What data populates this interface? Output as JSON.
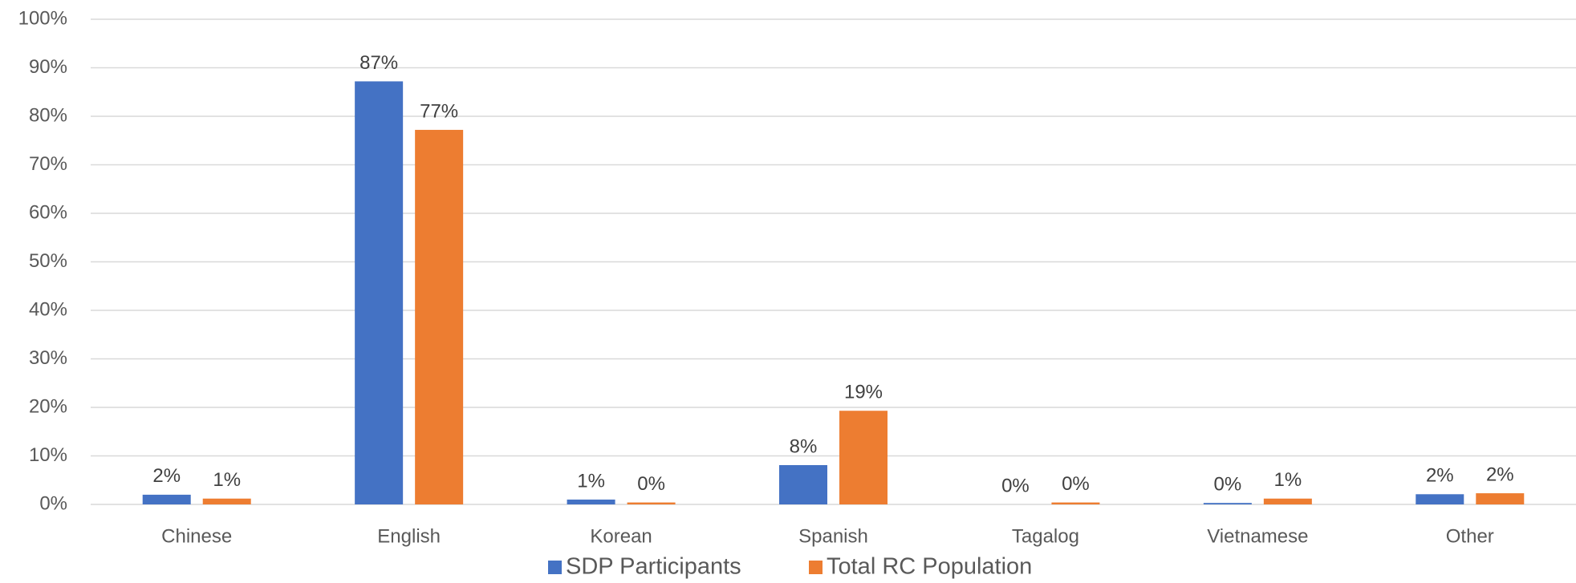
{
  "chart_data": {
    "type": "bar",
    "categories": [
      "Chinese",
      "English",
      "Korean",
      "Spanish",
      "Tagalog",
      "Vietnamese",
      "Other"
    ],
    "series": [
      {
        "name": "SDP Participants",
        "color": "#4472c4",
        "values": [
          2.0,
          87.2,
          1.0,
          8.1,
          0,
          0.3,
          2.1
        ],
        "value_labels": [
          "2%",
          "87%",
          "1%",
          "8%",
          "0%",
          "0%",
          "2%"
        ]
      },
      {
        "name": "Total RC Population",
        "color": "#ed7d31",
        "values": [
          1.2,
          77.2,
          0.4,
          19.3,
          0.4,
          1.2,
          2.3
        ],
        "value_labels": [
          "1%",
          "77%",
          "0%",
          "19%",
          "0%",
          "1%",
          "2%"
        ]
      }
    ],
    "ylim": [
      0,
      100
    ],
    "yticks": [
      {
        "value": 0,
        "label": "0%"
      },
      {
        "value": 10,
        "label": "10%"
      },
      {
        "value": 20,
        "label": "20%"
      },
      {
        "value": 30,
        "label": "30%"
      },
      {
        "value": 40,
        "label": "40%"
      },
      {
        "value": 50,
        "label": "50%"
      },
      {
        "value": 60,
        "label": "60%"
      },
      {
        "value": 70,
        "label": "70%"
      },
      {
        "value": 80,
        "label": "80%"
      },
      {
        "value": 90,
        "label": "90%"
      },
      {
        "value": 100,
        "label": "100%"
      }
    ],
    "grid": true,
    "legend": "bottom"
  }
}
